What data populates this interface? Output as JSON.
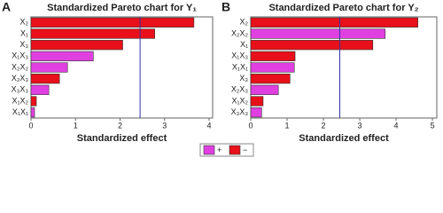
{
  "chart_data": [
    {
      "type": "bar",
      "panel_label": "A",
      "title": "Standardized Pareto chart for Y₁",
      "xlabel": "Standardized effect",
      "categories": [
        "X₂",
        "X₁",
        "X₃",
        "X₁X₃",
        "X₂X₂",
        "X₂X₃",
        "X₃X₃",
        "X₁X₂",
        "X₁X₁"
      ],
      "values": [
        3.66,
        2.78,
        2.06,
        1.4,
        0.82,
        0.64,
        0.4,
        0.12,
        0.08
      ],
      "bar_colors": [
        "#e8101a",
        "#e8101a",
        "#e8101a",
        "#e040e0",
        "#e040e0",
        "#e8101a",
        "#e040e0",
        "#e8101a",
        "#e040e0"
      ],
      "reference": 2.45,
      "xlim": [
        0,
        4.08
      ],
      "xticks": [
        0,
        1,
        2,
        3,
        4
      ]
    },
    {
      "type": "bar",
      "panel_label": "B",
      "title": "Standardized Pareto chart for Y₂",
      "xlabel": "Standardized effect",
      "categories": [
        "X₂",
        "X₂X₂",
        "X₁",
        "X₁X₃",
        "X₁X₁",
        "X₃",
        "X₂X₃",
        "X₁X₂",
        "X₃X₃"
      ],
      "values": [
        4.6,
        3.7,
        3.36,
        1.22,
        1.2,
        1.08,
        0.76,
        0.34,
        0.3
      ],
      "bar_colors": [
        "#e8101a",
        "#e040e0",
        "#e8101a",
        "#e8101a",
        "#e040e0",
        "#e8101a",
        "#e040e0",
        "#e8101a",
        "#e040e0"
      ],
      "reference": 2.45,
      "xlim": [
        0,
        5.12
      ],
      "xticks": [
        0,
        1,
        2,
        3,
        4,
        5
      ]
    }
  ],
  "legend": [
    {
      "label": "+",
      "color": "#e040e0"
    },
    {
      "label": "−",
      "color": "#e8101a"
    }
  ]
}
